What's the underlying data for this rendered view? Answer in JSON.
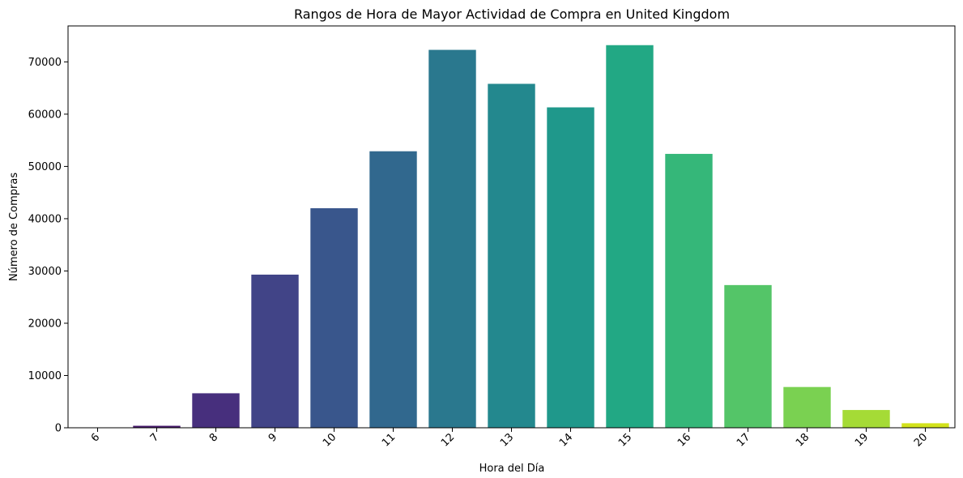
{
  "chart_data": {
    "type": "bar",
    "title": "Rangos de Hora de Mayor Actividad de Compra en United Kingdom",
    "xlabel": "Hora del Día",
    "ylabel": "Número de Compras",
    "categories": [
      "6",
      "7",
      "8",
      "9",
      "10",
      "11",
      "12",
      "13",
      "14",
      "15",
      "16",
      "17",
      "18",
      "19",
      "20"
    ],
    "values": [
      40,
      380,
      6600,
      29300,
      42000,
      52900,
      72300,
      65800,
      61300,
      73200,
      52400,
      27300,
      7800,
      3400,
      870
    ],
    "colors": [
      "#440154",
      "#481a6c",
      "#472f7d",
      "#414487",
      "#39568c",
      "#31688e",
      "#2a788e",
      "#23888e",
      "#1f988b",
      "#22a884",
      "#35b779",
      "#54c568",
      "#7ad151",
      "#a5db36",
      "#d2e21b"
    ],
    "yticks": [
      0,
      10000,
      20000,
      30000,
      40000,
      50000,
      60000,
      70000
    ],
    "ylim": [
      0,
      76880
    ],
    "grid": false,
    "x_tick_rotation": 45
  }
}
